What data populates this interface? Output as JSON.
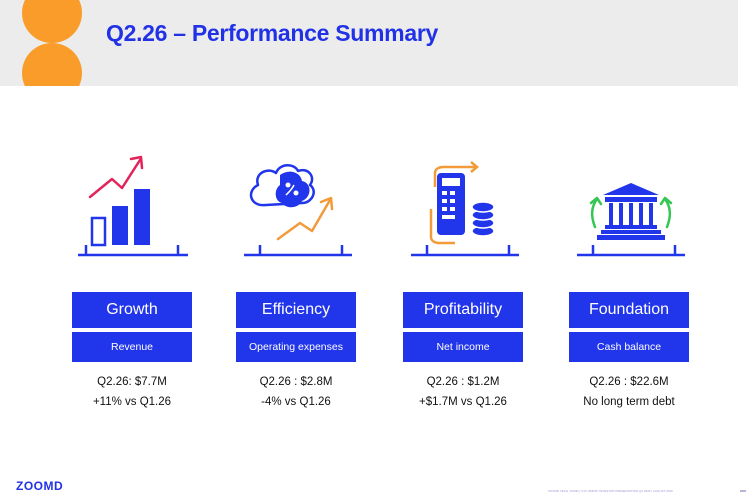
{
  "header": {
    "title": "Q2.26 – Performance Summary"
  },
  "colors": {
    "brand_blue": "#2135eb",
    "accent_orange": "#f99c29",
    "icon_pink": "#e2245a",
    "icon_green": "#35c653",
    "header_bg": "#ececec"
  },
  "cards": [
    {
      "icon": "growth-chart-icon",
      "title": "Growth",
      "metric": "Revenue",
      "value": "Q2.26: $7.7M",
      "change": "+11% vs Q1.26"
    },
    {
      "icon": "brain-trend-icon",
      "title": "Efficiency",
      "metric": "Operating expenses",
      "value": "Q2.26 : $2.8M",
      "change": "-4% vs Q1.26"
    },
    {
      "icon": "calculator-coins-icon",
      "title": "Profitability",
      "metric": "Net income",
      "value": "Q2.26 : $1.2M",
      "change": "+$1.7M vs Q1.26"
    },
    {
      "icon": "bank-building-icon",
      "title": "Foundation",
      "metric": "Cash balance",
      "value": "Q2.26 : $22.6M",
      "change": "No long term debt"
    }
  ],
  "footer": {
    "logo": "ZOOMD",
    "footnote": "ZOOMD TECH. ZOMD | OTC ZMDTF   INVESTOR PRESENTATION Q2 2026 | AUGUST 2026"
  }
}
